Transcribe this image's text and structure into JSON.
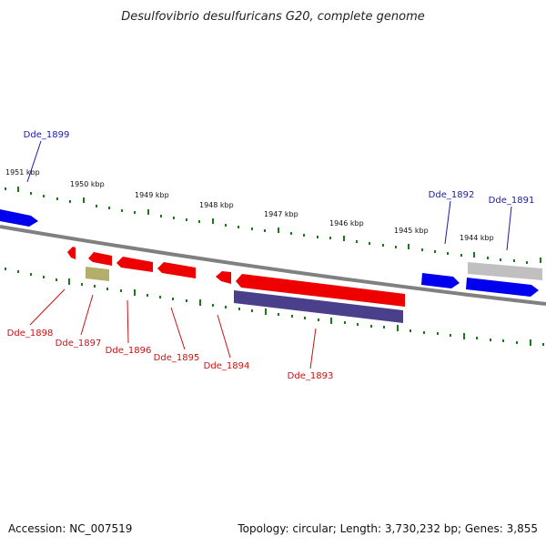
{
  "title": "Desulfovibrio desulfuricans G20, complete genome",
  "footer": {
    "accession": "Accession: NC_007519",
    "summary": "Topology: circular; Length: 3,730,232 bp; Genes: 3,855"
  },
  "colors": {
    "forward_gene": "#0000ee",
    "reverse_gene": "#ee0000",
    "ribbon": "#808080",
    "tick": "#1a7a1a",
    "label_forward": "#1a1aa8",
    "label_reverse": "#cc1111",
    "olive_feature": "#b5ad6a",
    "purple_feature": "#4a3f8a",
    "grey_feature": "#c0c0c0"
  },
  "scale_labels": [
    "1951 kbp",
    "1950 kbp",
    "1949 kbp",
    "1948 kbp",
    "1947 kbp",
    "1946 kbp",
    "1945 kbp",
    "1944 kbp"
  ],
  "genes": [
    {
      "id": "Dde_1899",
      "strand": "forward"
    },
    {
      "id": "Dde_1892",
      "strand": "forward"
    },
    {
      "id": "Dde_1891",
      "strand": "forward"
    },
    {
      "id": "Dde_1898",
      "strand": "reverse"
    },
    {
      "id": "Dde_1897",
      "strand": "reverse"
    },
    {
      "id": "Dde_1896",
      "strand": "reverse"
    },
    {
      "id": "Dde_1895",
      "strand": "reverse"
    },
    {
      "id": "Dde_1894",
      "strand": "reverse"
    },
    {
      "id": "Dde_1893",
      "strand": "reverse"
    }
  ]
}
